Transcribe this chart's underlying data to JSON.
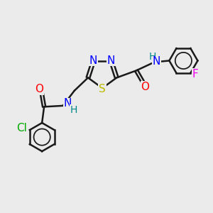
{
  "background_color": "#ebebeb",
  "bond_color": "#1a1a1a",
  "bond_width": 1.8,
  "atom_colors": {
    "N": "#0000ff",
    "O": "#ff0000",
    "S": "#bbbb00",
    "Cl": "#00aa00",
    "F": "#ee00ee",
    "H": "#008888"
  },
  "font_size": 10,
  "fig_size": [
    3.0,
    3.0
  ],
  "dpi": 100,
  "xlim": [
    0,
    10
  ],
  "ylim": [
    0,
    10
  ]
}
